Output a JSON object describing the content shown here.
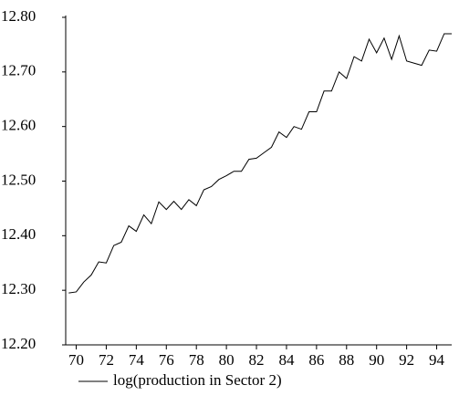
{
  "chart_data": {
    "type": "line",
    "x": [
      69.5,
      70,
      70.5,
      71,
      71.5,
      72,
      72.5,
      73,
      73.5,
      74,
      74.5,
      75,
      75.5,
      76,
      76.5,
      77,
      77.5,
      78,
      78.5,
      79,
      79.5,
      80,
      80.5,
      81,
      81.5,
      82,
      82.5,
      83,
      83.5,
      84,
      84.5,
      85,
      85.5,
      86,
      86.5,
      87,
      87.5,
      88,
      88.5,
      89,
      89.5,
      90,
      90.5,
      91,
      91.5,
      92,
      92.5,
      93,
      93.5,
      94,
      94.5,
      95
    ],
    "series": [
      {
        "name": "log(production in Sector 2)",
        "color": "#000000",
        "values": [
          12.295,
          12.297,
          12.315,
          12.328,
          12.352,
          12.35,
          12.382,
          12.388,
          12.418,
          12.408,
          12.438,
          12.422,
          12.462,
          12.448,
          12.463,
          12.448,
          12.466,
          12.455,
          12.484,
          12.49,
          12.503,
          12.51,
          12.518,
          12.518,
          12.54,
          12.542,
          12.552,
          12.562,
          12.59,
          12.58,
          12.6,
          12.595,
          12.627,
          12.627,
          12.665,
          12.665,
          12.7,
          12.688,
          12.728,
          12.72,
          12.76,
          12.735,
          12.762,
          12.723,
          12.766,
          12.72,
          12.716,
          12.712,
          12.74,
          12.738,
          12.77,
          12.77
        ]
      }
    ],
    "xlim": [
      69.3,
      95
    ],
    "xticks": [
      70,
      72,
      74,
      76,
      78,
      80,
      82,
      84,
      86,
      88,
      90,
      92,
      94
    ],
    "ylim": [
      12.2,
      12.8
    ],
    "yticks": [
      {
        "value": 12.2,
        "label": "12.20"
      },
      {
        "value": 12.3,
        "label": "12.30"
      },
      {
        "value": 12.4,
        "label": "12.40"
      },
      {
        "value": 12.5,
        "label": "12.50"
      },
      {
        "value": 12.6,
        "label": "12.60"
      },
      {
        "value": 12.7,
        "label": "12.70"
      },
      {
        "value": 12.8,
        "label": "12.80"
      }
    ],
    "legend": "bottom-left"
  }
}
